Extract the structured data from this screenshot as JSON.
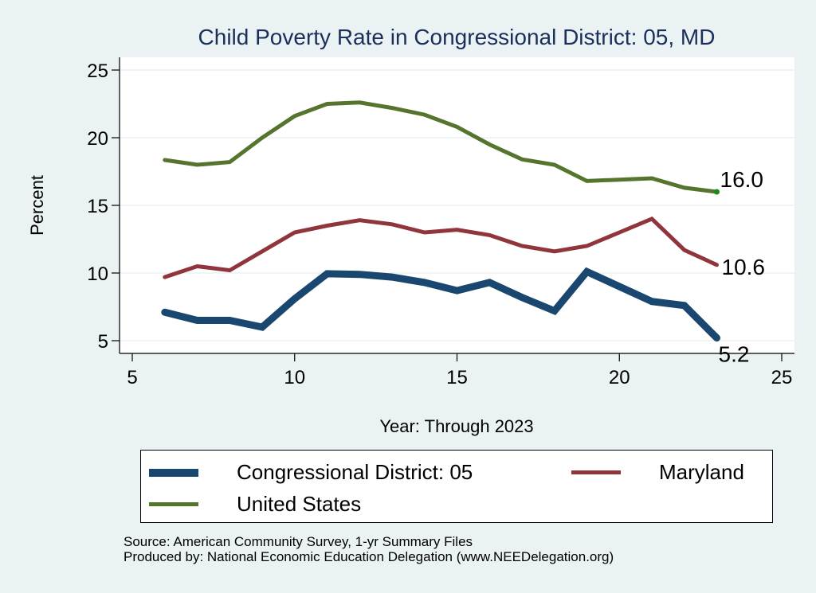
{
  "chart_data": {
    "type": "line",
    "title": "Child Poverty Rate in Congressional District:  05, MD",
    "xlabel": "Year: Through 2023",
    "ylabel": "Percent",
    "xlim": [
      5,
      25
    ],
    "ylim": [
      5,
      25
    ],
    "xticks": [
      5,
      10,
      15,
      20,
      25
    ],
    "yticks": [
      5,
      10,
      15,
      20,
      25
    ],
    "grid": true,
    "legend_position": "bottom",
    "x": [
      6,
      7,
      8,
      9,
      10,
      11,
      12,
      13,
      14,
      15,
      16,
      17,
      18,
      19,
      20,
      21,
      22,
      23
    ],
    "series": [
      {
        "name": "Congressional District:  05",
        "color": "#1a476f",
        "values": [
          7.1,
          6.5,
          6.5,
          6.0,
          8.1,
          9.95,
          9.9,
          9.7,
          9.3,
          8.7,
          9.3,
          8.2,
          7.2,
          10.1,
          9.0,
          7.9,
          7.6,
          5.2
        ],
        "end_label": "5.2"
      },
      {
        "name": "Maryland",
        "color": "#90353b",
        "values": [
          9.7,
          10.5,
          10.2,
          11.6,
          13.0,
          13.5,
          13.9,
          13.6,
          13.0,
          13.2,
          12.8,
          12.0,
          11.6,
          12.0,
          13.0,
          14.0,
          11.7,
          10.6
        ],
        "end_label": "10.6"
      },
      {
        "name": "United States",
        "color": "#55752f",
        "values": [
          18.35,
          18.0,
          18.2,
          20.0,
          21.6,
          22.5,
          22.6,
          22.2,
          21.7,
          20.8,
          19.5,
          18.4,
          18.0,
          16.8,
          16.9,
          17.0,
          16.3,
          16.0
        ],
        "end_label": "16.0"
      }
    ]
  },
  "legend": {
    "items": [
      {
        "label": "Congressional District:  05",
        "color": "#1a476f"
      },
      {
        "label": "Maryland",
        "color": "#90353b"
      },
      {
        "label": "United States",
        "color": "#55752f"
      }
    ]
  },
  "source": {
    "line1": "Source: American Community Survey, 1-yr Summary Files",
    "line2": "Produced by: National Economic Education Delegation (www.NEEDelegation.org)"
  },
  "colors": {
    "background": "#eaf2f3",
    "plot_background": "#ffffff",
    "gridline": "#eaf2f3",
    "title": "#1a2f5a",
    "us_endpoint_marker": "#1a8a1a"
  }
}
